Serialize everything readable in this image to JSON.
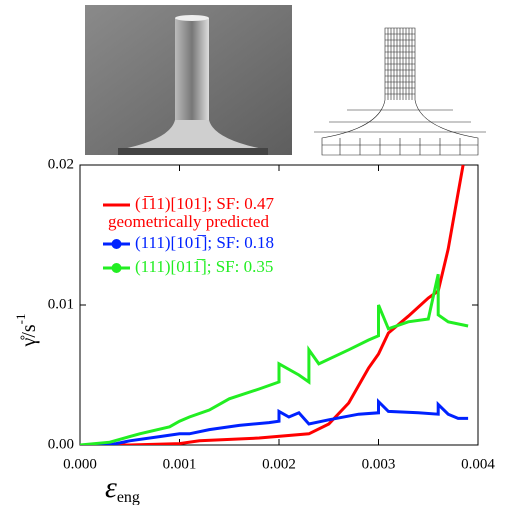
{
  "chart_data": {
    "type": "line",
    "xlabel": "ε",
    "xlabel_sub": "eng",
    "ylabel": "γ̊/s",
    "ylabel_sup": "-1",
    "annotation": "geometrically predicted",
    "xlim": [
      0,
      0.004
    ],
    "ylim": [
      0,
      0.02
    ],
    "xticks": [
      {
        "value": 0,
        "label": "0.000"
      },
      {
        "value": 0.001,
        "label": "0.001"
      },
      {
        "value": 0.002,
        "label": "0.002"
      },
      {
        "value": 0.003,
        "label": "0.003"
      },
      {
        "value": 0.004,
        "label": "0.004"
      }
    ],
    "yticks": [
      {
        "value": 0,
        "label": "0.00"
      },
      {
        "value": 0.01,
        "label": "0.01"
      },
      {
        "value": 0.02,
        "label": "0.02"
      }
    ],
    "series": [
      {
        "name": "(1̅11)[101]; SF: 0.47",
        "color": "#ff0000",
        "marker": false,
        "x": [
          0,
          0.0005,
          0.001,
          0.0012,
          0.0018,
          0.0023,
          0.0025,
          0.0027,
          0.0029,
          0.003,
          0.0031,
          0.0033,
          0.0035,
          0.0036,
          0.0037,
          0.0038,
          0.00385
        ],
        "values": [
          0,
          0,
          0.0001,
          0.0003,
          0.0005,
          0.0008,
          0.0015,
          0.003,
          0.0055,
          0.0065,
          0.008,
          0.0092,
          0.0105,
          0.011,
          0.014,
          0.018,
          0.02
        ]
      },
      {
        "name": "(111)[101̅]; SF: 0.18",
        "color": "#0022ff",
        "marker": true,
        "x": [
          0,
          0.0003,
          0.0005,
          0.0008,
          0.001,
          0.0011,
          0.0013,
          0.0016,
          0.0019,
          0.002,
          0.002,
          0.0021,
          0.0022,
          0.0023,
          0.0025,
          0.0028,
          0.003,
          0.003,
          0.0031,
          0.0034,
          0.0036,
          0.0036,
          0.0037,
          0.0038,
          0.0039
        ],
        "values": [
          0,
          0,
          0.0003,
          0.0006,
          0.0008,
          0.0008,
          0.0011,
          0.0014,
          0.0016,
          0.0017,
          0.0024,
          0.002,
          0.0023,
          0.0015,
          0.0018,
          0.0022,
          0.0023,
          0.0031,
          0.0024,
          0.0023,
          0.0022,
          0.0029,
          0.0022,
          0.0019,
          0.0019
        ]
      },
      {
        "name": "(111)[011̅]; SF: 0.35",
        "color": "#22ee22",
        "marker": true,
        "x": [
          0,
          0.0003,
          0.0006,
          0.0009,
          0.001,
          0.0011,
          0.0013,
          0.0015,
          0.0018,
          0.002,
          0.002,
          0.0022,
          0.0023,
          0.0023,
          0.0024,
          0.0027,
          0.0029,
          0.003,
          0.003,
          0.0031,
          0.0033,
          0.0035,
          0.0036,
          0.0036,
          0.0037,
          0.0039
        ],
        "values": [
          0,
          0.0002,
          0.0008,
          0.0013,
          0.0017,
          0.002,
          0.0025,
          0.0033,
          0.004,
          0.0045,
          0.0058,
          0.005,
          0.0045,
          0.0068,
          0.0058,
          0.0068,
          0.0075,
          0.0078,
          0.01,
          0.0083,
          0.0088,
          0.009,
          0.0122,
          0.0093,
          0.0088,
          0.0085
        ]
      }
    ]
  }
}
